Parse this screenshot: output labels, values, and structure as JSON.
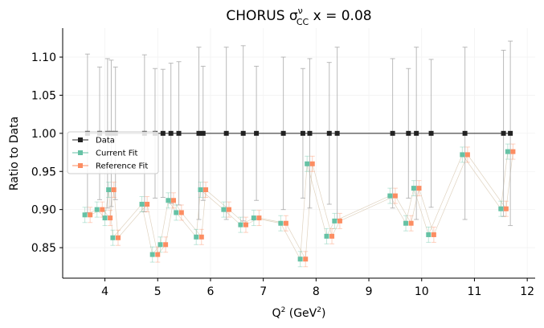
{
  "chart_data": {
    "type": "scatter",
    "title_main": "CHORUS σ",
    "title_sup": "ν",
    "title_sub": "CC",
    "title_tail": " x = 0.08",
    "xlabel_main": "Q",
    "xlabel_sup": "2",
    "xlabel_mid": " (GeV",
    "xlabel_sup2": "2",
    "xlabel_end": ")",
    "ylabel": "Ratio to Data",
    "xlim": [
      3.2,
      12.15
    ],
    "ylim": [
      0.81,
      1.138
    ],
    "xticks": [
      4,
      5,
      6,
      7,
      8,
      9,
      10,
      11,
      12
    ],
    "yticks": [
      0.85,
      0.9,
      0.95,
      1.0,
      1.05,
      1.1
    ],
    "ytick_labels": [
      "0.85",
      "0.90",
      "0.95",
      "1.00",
      "1.05",
      "1.10"
    ],
    "grid": true,
    "legend_position": "center-left",
    "colors": {
      "data": "#222222",
      "data_err": "#aaaaaa",
      "current": "#66c2a5",
      "reference": "#fc8d62",
      "line": "#d8c8b0"
    },
    "series": [
      {
        "name": "Data",
        "x": [
          3.67,
          3.9,
          4.05,
          4.12,
          4.2,
          4.75,
          4.95,
          5.1,
          5.25,
          5.4,
          5.78,
          5.86,
          6.3,
          6.62,
          6.87,
          7.38,
          7.75,
          7.88,
          8.25,
          8.4,
          9.45,
          9.75,
          9.9,
          10.18,
          10.82,
          11.55,
          11.68
        ],
        "y": [
          1.0,
          1.0,
          1.0,
          1.0,
          1.0,
          1.0,
          1.0,
          1.0,
          1.0,
          1.0,
          1.0,
          1.0,
          1.0,
          1.0,
          1.0,
          1.0,
          1.0,
          1.0,
          1.0,
          1.0,
          1.0,
          1.0,
          1.0,
          1.0,
          1.0,
          1.0,
          1.0
        ],
        "err": [
          0.104,
          0.087,
          0.098,
          0.096,
          0.087,
          0.103,
          0.085,
          0.084,
          0.092,
          0.094,
          0.113,
          0.088,
          0.113,
          0.115,
          0.088,
          0.1,
          0.085,
          0.098,
          0.093,
          0.113,
          0.098,
          0.085,
          0.113,
          0.097,
          0.113,
          0.109,
          0.121
        ]
      },
      {
        "name": "Current Fit",
        "x": [
          3.67,
          3.9,
          4.05,
          4.12,
          4.2,
          4.75,
          4.95,
          5.1,
          5.25,
          5.4,
          5.78,
          5.86,
          6.3,
          6.62,
          6.87,
          7.38,
          7.75,
          7.88,
          8.25,
          8.4,
          9.45,
          9.75,
          9.9,
          10.18,
          10.82,
          11.55,
          11.68
        ],
        "y": [
          0.893,
          0.9,
          0.889,
          0.926,
          0.863,
          0.907,
          0.841,
          0.854,
          0.912,
          0.896,
          0.864,
          0.926,
          0.9,
          0.88,
          0.889,
          0.882,
          0.835,
          0.96,
          0.865,
          0.885,
          0.918,
          0.882,
          0.928,
          0.867,
          0.972,
          0.901,
          0.976
        ],
        "err": [
          0.01,
          0.01,
          0.01,
          0.01,
          0.01,
          0.01,
          0.01,
          0.01,
          0.01,
          0.01,
          0.01,
          0.01,
          0.01,
          0.01,
          0.01,
          0.01,
          0.01,
          0.01,
          0.01,
          0.01,
          0.01,
          0.01,
          0.01,
          0.01,
          0.01,
          0.01,
          0.01
        ]
      },
      {
        "name": "Reference Fit",
        "x": [
          3.67,
          3.9,
          4.05,
          4.12,
          4.2,
          4.75,
          4.95,
          5.1,
          5.25,
          5.4,
          5.78,
          5.86,
          6.3,
          6.62,
          6.87,
          7.38,
          7.75,
          7.88,
          8.25,
          8.4,
          9.45,
          9.75,
          9.9,
          10.18,
          10.82,
          11.55,
          11.68
        ],
        "y": [
          0.893,
          0.9,
          0.889,
          0.926,
          0.863,
          0.907,
          0.841,
          0.854,
          0.912,
          0.896,
          0.864,
          0.926,
          0.9,
          0.88,
          0.889,
          0.882,
          0.835,
          0.96,
          0.865,
          0.885,
          0.918,
          0.882,
          0.928,
          0.867,
          0.972,
          0.901,
          0.976
        ],
        "err": [
          0.01,
          0.01,
          0.01,
          0.01,
          0.01,
          0.01,
          0.01,
          0.01,
          0.01,
          0.01,
          0.01,
          0.01,
          0.01,
          0.01,
          0.01,
          0.01,
          0.01,
          0.01,
          0.01,
          0.01,
          0.01,
          0.01,
          0.01,
          0.01,
          0.01,
          0.01,
          0.01
        ]
      }
    ]
  }
}
